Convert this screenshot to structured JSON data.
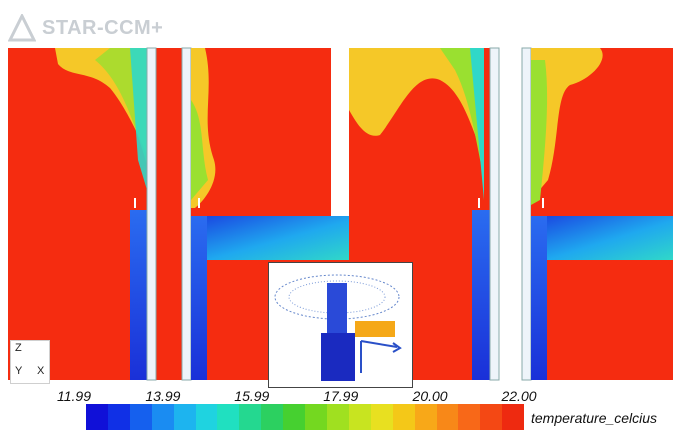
{
  "app": {
    "logo_text": "STAR-CCM+"
  },
  "axes_triad": {
    "z": "Z",
    "y": "Y",
    "x": "X"
  },
  "colorbar": {
    "title": "temperature_celcius",
    "ticks": [
      "11.99",
      "13.99",
      "15.99",
      "17.99",
      "20.00",
      "22.00"
    ],
    "min": 11.99,
    "max": 22.0,
    "colors": [
      "#1010d8",
      "#1030e6",
      "#1560ee",
      "#1a8cf2",
      "#1db4ef",
      "#1fd3e0",
      "#20e0c0",
      "#24d890",
      "#2cd060",
      "#46d030",
      "#74d820",
      "#a0e020",
      "#c8e420",
      "#e8e020",
      "#f4c818",
      "#f8a818",
      "#f88818",
      "#f86818",
      "#f44814",
      "#ee2a10"
    ]
  },
  "colors": {
    "hot": "#f52c10",
    "cold": "#1a3ae0",
    "bg": "#ffffff"
  }
}
